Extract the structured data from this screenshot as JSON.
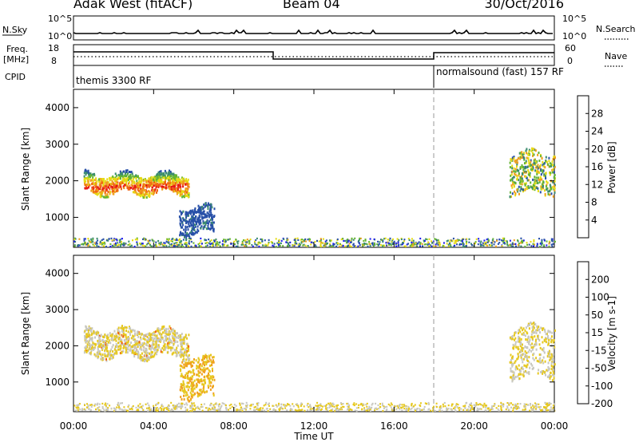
{
  "header": {
    "station": "Adak West (fitACF)",
    "beam": "Beam 04",
    "date": "30/Oct/2016"
  },
  "top_panels": {
    "nsky_label": "N.Sky",
    "nsearch_label": "N.Search",
    "nsky_ticks": [
      "10^5",
      "10^0"
    ],
    "freq_label_line1": "Freq.",
    "freq_label_line2": "[MHz]",
    "freq_ticks": [
      "18",
      "8"
    ],
    "nave_label": "Nave",
    "nave_ticks": [
      "60",
      "0"
    ],
    "cpid_label": "CPID",
    "cpid_modes": [
      "themis 3300 RF",
      "normalsound (fast) 157 RF"
    ]
  },
  "colors": {
    "power": [
      "#1e1ef0",
      "#2850a8",
      "#3c8c6e",
      "#64b432",
      "#e6dc14",
      "#f0a01e",
      "#f06414",
      "#e61414"
    ],
    "velocity": [
      "#e61414",
      "#f06414",
      "#f0a01e",
      "#e6c81e",
      "#c8c8c0",
      "#64b432",
      "#3c8c6e",
      "#1e3cc8"
    ]
  },
  "chart_data": [
    {
      "type": "heatmap",
      "title": "",
      "xlabel": "",
      "ylabel": "Slant Range [km]",
      "xlim": [
        "00:00",
        "24:00"
      ],
      "ylim": [
        180,
        4500
      ],
      "y_ticks": [
        1000,
        2000,
        3000,
        4000
      ],
      "colorbar": {
        "label": "Power [dB]",
        "ticks": [
          "4",
          "8",
          "12",
          "16",
          "20",
          "24",
          "28"
        ],
        "range": [
          0,
          30
        ]
      },
      "features": [
        {
          "from": "00:30",
          "to": "05:45",
          "range_km": [
            1600,
            2300
          ],
          "value_db": [
            6,
            30
          ]
        },
        {
          "from": "05:15",
          "to": "07:00",
          "range_km": [
            600,
            1300
          ],
          "value_db": [
            4,
            8
          ]
        },
        {
          "from": "21:45",
          "to": "24:00",
          "range_km": [
            1500,
            3000
          ],
          "value_db": [
            6,
            22
          ]
        },
        {
          "from": "00:00",
          "to": "24:00",
          "range_km": [
            180,
            450
          ],
          "value_db": [
            2,
            20
          ]
        }
      ],
      "mode_change": "18:00"
    },
    {
      "type": "heatmap",
      "title": "",
      "xlabel": "Time UT",
      "ylabel": "Slant Range [km]",
      "xlim": [
        "00:00",
        "24:00"
      ],
      "ylim": [
        180,
        4500
      ],
      "x_ticks": [
        "00:00",
        "04:00",
        "08:00",
        "12:00",
        "16:00",
        "20:00",
        "00:00"
      ],
      "y_ticks": [
        1000,
        2000,
        3000,
        4000
      ],
      "colorbar": {
        "label": "Velocity [m s-1]",
        "ticks": [
          "200",
          "100",
          "50",
          "15",
          "-15",
          "-50",
          "-100",
          "-200"
        ],
        "range": [
          -250,
          250
        ]
      },
      "features": [
        {
          "from": "00:30",
          "to": "05:45",
          "range_km": [
            1600,
            2600
          ],
          "value_ms": [
            -15,
            15
          ]
        },
        {
          "from": "05:15",
          "to": "07:00",
          "range_km": [
            600,
            1700
          ],
          "value_ms": [
            -100,
            -15
          ]
        },
        {
          "from": "21:45",
          "to": "24:00",
          "range_km": [
            900,
            2800
          ],
          "value_ms": [
            -50,
            50
          ]
        },
        {
          "from": "00:00",
          "to": "24:00",
          "range_km": [
            180,
            450
          ],
          "value_ms": [
            -50,
            50
          ]
        }
      ],
      "mode_change": "18:00"
    }
  ]
}
